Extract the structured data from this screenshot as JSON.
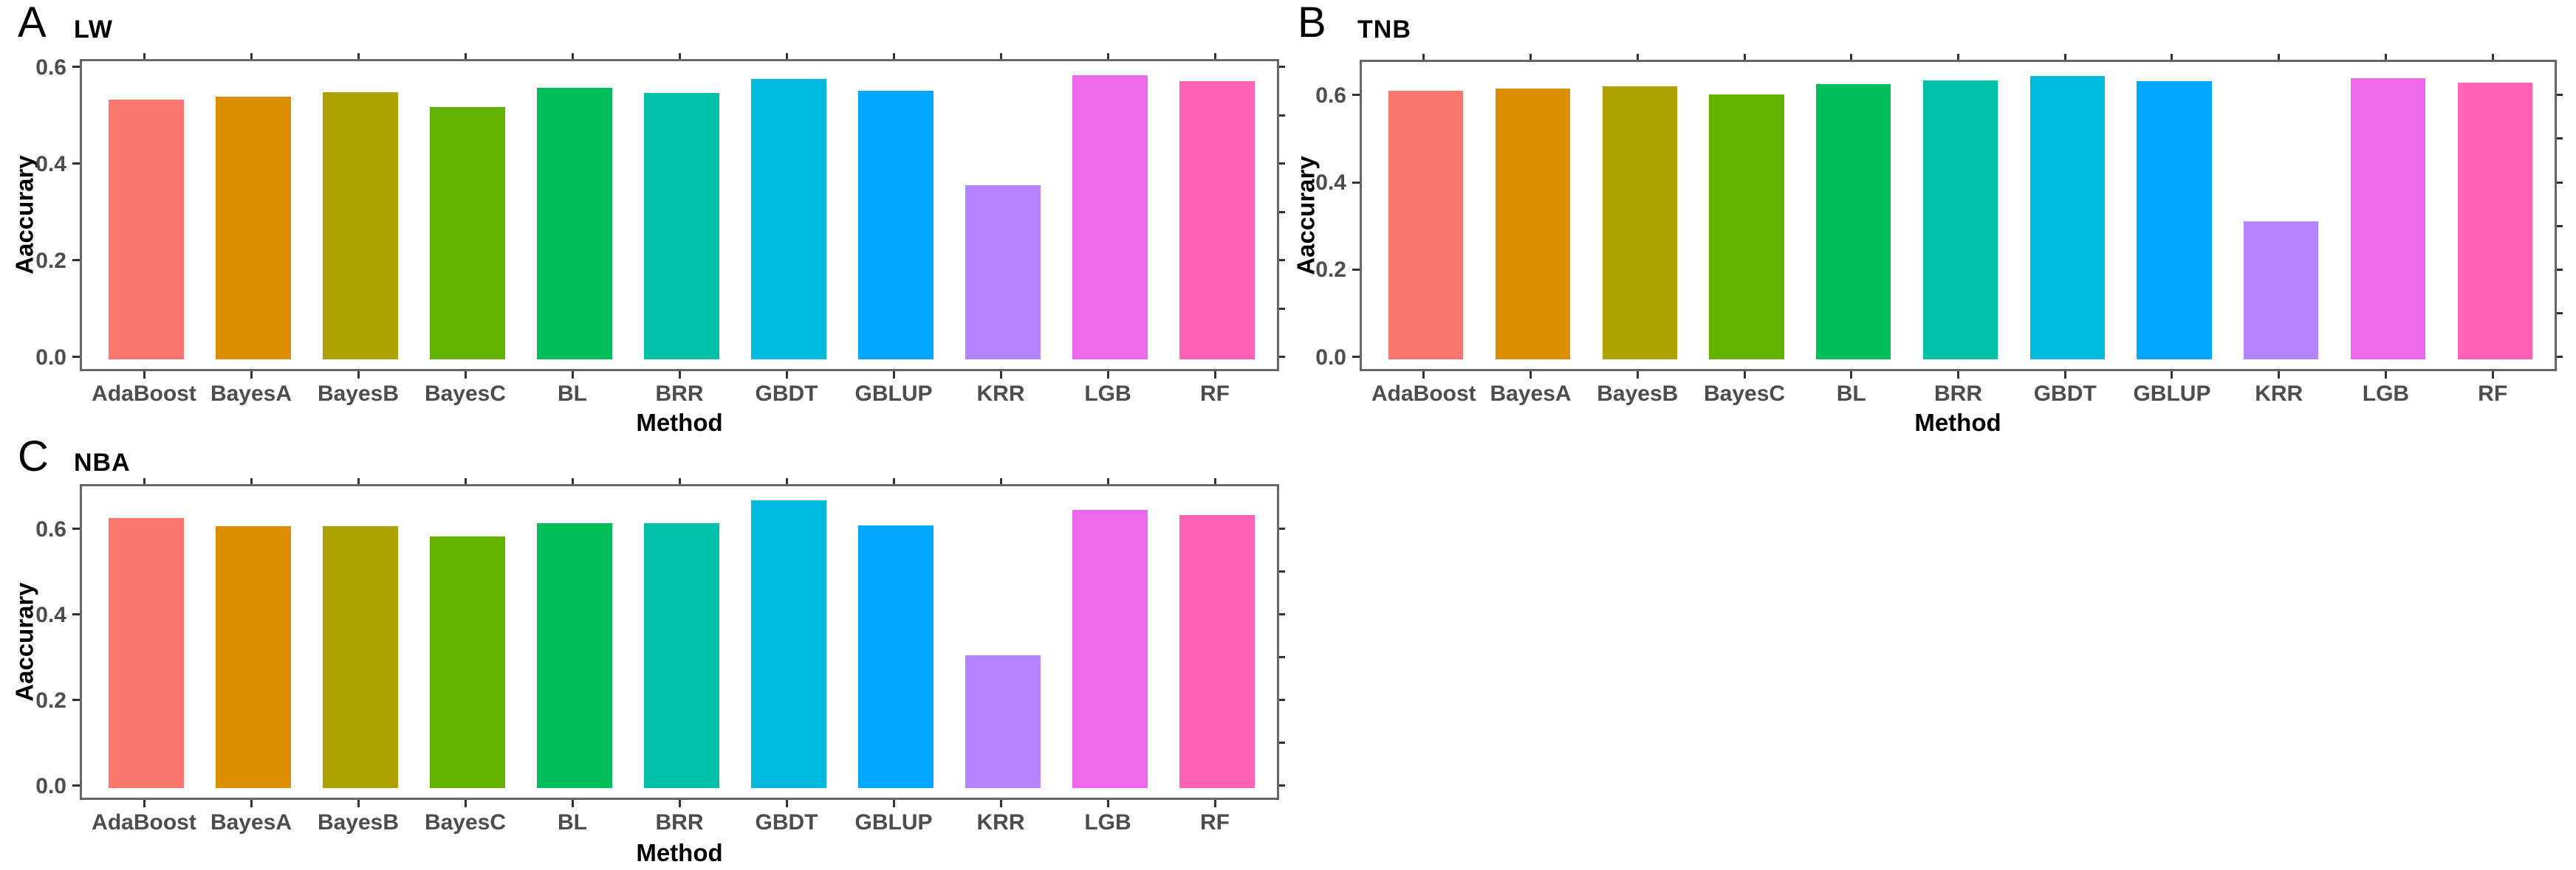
{
  "palette": [
    "#F8766D",
    "#DB8E00",
    "#AEA200",
    "#64B200",
    "#00BD5C",
    "#00C1A7",
    "#00BADE",
    "#00A6FF",
    "#B385FF",
    "#EF67EB",
    "#FF63B6"
  ],
  "chart_data": [
    {
      "type": "bar",
      "panel_label": "A",
      "title": "LW",
      "xlabel": "Method",
      "ylabel": "Aaccurary",
      "categories": [
        "AdaBoost",
        "BayesA",
        "BayesB",
        "BayesC",
        "BL",
        "BRR",
        "GBDT",
        "GBLUP",
        "KRR",
        "LGB",
        "RF"
      ],
      "values": [
        0.537,
        0.543,
        0.553,
        0.521,
        0.561,
        0.551,
        0.58,
        0.556,
        0.36,
        0.587,
        0.575
      ],
      "ylim": [
        0,
        0.62
      ],
      "yticks": [
        0.0,
        0.2,
        0.4,
        0.6
      ],
      "ytick_labels": [
        "0.0",
        "0.2",
        "0.4",
        "0.6"
      ],
      "right_minor_ticks": [
        0.0,
        0.1,
        0.2,
        0.3,
        0.4,
        0.5,
        0.6
      ],
      "grid": "off",
      "legend": "none"
    },
    {
      "type": "bar",
      "panel_label": "B",
      "title": "TNB",
      "xlabel": "Method",
      "ylabel": "Aaccurary",
      "categories": [
        "AdaBoost",
        "BayesA",
        "BayesB",
        "BayesC",
        "BL",
        "BRR",
        "GBDT",
        "GBLUP",
        "KRR",
        "LGB",
        "RF"
      ],
      "values": [
        0.615,
        0.62,
        0.624,
        0.606,
        0.63,
        0.638,
        0.648,
        0.637,
        0.316,
        0.644,
        0.633
      ],
      "ylim": [
        0,
        0.68
      ],
      "yticks": [
        0.0,
        0.2,
        0.4,
        0.6
      ],
      "ytick_labels": [
        "0.0",
        "0.2",
        "0.4",
        "0.6"
      ],
      "right_minor_ticks": [
        0.0,
        0.1,
        0.2,
        0.3,
        0.4,
        0.5,
        0.6
      ],
      "grid": "off",
      "legend": "none"
    },
    {
      "type": "bar",
      "panel_label": "C",
      "title": "NBA",
      "xlabel": "Method",
      "ylabel": "Aaccurary",
      "categories": [
        "AdaBoost",
        "BayesA",
        "BayesB",
        "BayesC",
        "BL",
        "BRR",
        "GBDT",
        "GBLUP",
        "KRR",
        "LGB",
        "RF"
      ],
      "values": [
        0.63,
        0.611,
        0.611,
        0.588,
        0.619,
        0.619,
        0.671,
        0.613,
        0.31,
        0.649,
        0.638
      ],
      "ylim": [
        0,
        0.7
      ],
      "yticks": [
        0.0,
        0.2,
        0.4,
        0.6
      ],
      "ytick_labels": [
        "0.0",
        "0.2",
        "0.4",
        "0.6"
      ],
      "right_minor_ticks": [
        0.0,
        0.1,
        0.2,
        0.3,
        0.4,
        0.5,
        0.6
      ],
      "grid": "off",
      "legend": "none"
    }
  ]
}
